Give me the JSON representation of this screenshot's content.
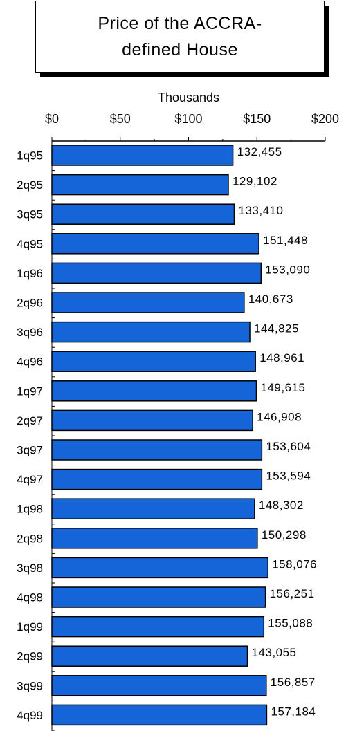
{
  "chart_data": {
    "type": "bar",
    "orientation": "horizontal",
    "title": "Price of the ACCRA-defined House",
    "axis_unit_label": "Thousands",
    "xlim": [
      0,
      200
    ],
    "x_ticks": [
      "$0",
      "$50",
      "$100",
      "$150",
      "$200"
    ],
    "x_tick_values": [
      0,
      50,
      100,
      150,
      200
    ],
    "categories": [
      "1q95",
      "2q95",
      "3q95",
      "4q95",
      "1q96",
      "2q96",
      "3q96",
      "4q96",
      "1q97",
      "2q97",
      "3q97",
      "4q97",
      "1q98",
      "2q98",
      "3q98",
      "4q98",
      "1q99",
      "2q99",
      "3q99",
      "4q99"
    ],
    "values": [
      132.455,
      129.102,
      133.41,
      151.448,
      153.09,
      140.673,
      144.825,
      148.961,
      149.615,
      146.908,
      153.604,
      153.594,
      148.302,
      150.298,
      158.076,
      156.251,
      155.088,
      143.055,
      156.857,
      157.184
    ],
    "data_labels": [
      "132,455",
      "129,102",
      "133,410",
      "151,448",
      "153,090",
      "140,673",
      "144,825",
      "148,961",
      "149,615",
      "146,908",
      "153,604",
      "153,594",
      "148,302",
      "150,298",
      "158,076",
      "156,251",
      "155,088",
      "143,055",
      "156,857",
      "157,184"
    ],
    "grid": false,
    "legend": "none",
    "bar_color": "#1565d8"
  }
}
